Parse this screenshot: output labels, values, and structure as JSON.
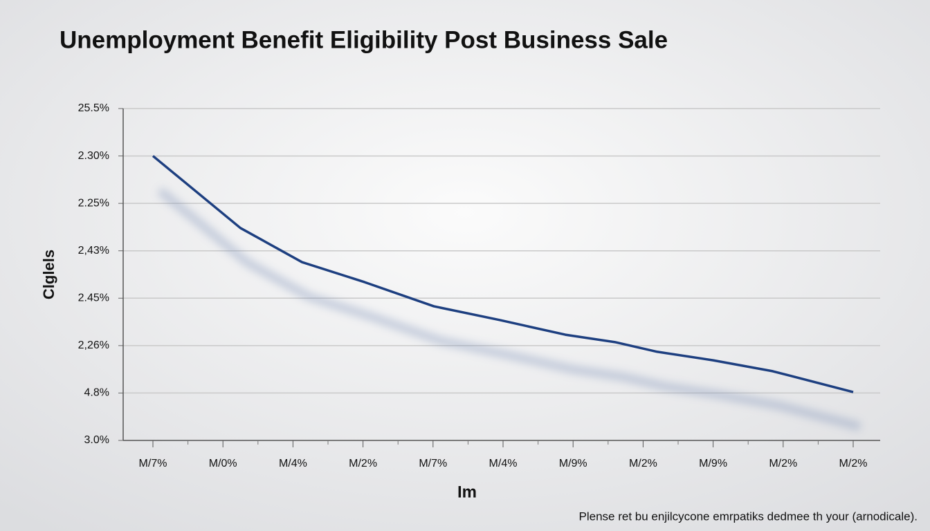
{
  "chart_data": {
    "type": "line",
    "title": "Unemployment Benefit Eligibility Post Business Sale",
    "x_label": "Im",
    "y_label": "Clglels",
    "footnote": "Plense ret bu enjilcycone emrpatiks dedmee th your (arnodicale).",
    "xlim": [
      0,
      10
    ],
    "xticks": [
      {
        "value": 0,
        "label": "M/7%"
      },
      {
        "value": 1,
        "label": "M/0%"
      },
      {
        "value": 2,
        "label": "M/4%"
      },
      {
        "value": 3,
        "label": "M/2%"
      },
      {
        "value": 4,
        "label": "M/7%"
      },
      {
        "value": 5,
        "label": "M/4%"
      },
      {
        "value": 6,
        "label": "M/9%"
      },
      {
        "value": 7,
        "label": "M/2%"
      },
      {
        "value": 8,
        "label": "M/9%"
      },
      {
        "value": 9,
        "label": "M/2%"
      },
      {
        "value": 10,
        "label": "M/2%"
      }
    ],
    "ylim": [
      0,
      7
    ],
    "yticks": [
      {
        "value": 0,
        "label": "3.0%"
      },
      {
        "value": 1,
        "label": "4.8%"
      },
      {
        "value": 2,
        "label": "2,26%"
      },
      {
        "value": 3,
        "label": "2.45%"
      },
      {
        "value": 4,
        "label": "2,43%"
      },
      {
        "value": 5,
        "label": "2.25%"
      },
      {
        "value": 6,
        "label": "2.30%"
      },
      {
        "value": 7,
        "label": "25.5%"
      }
    ],
    "grid": true,
    "x": [
      0,
      1.25,
      2.13,
      3.02,
      4.01,
      4.95,
      5.89,
      6.61,
      7.2,
      8.0,
      8.85,
      10
    ],
    "series": [
      {
        "color": "#1d3f80",
        "values": [
          6.0,
          4.48,
          3.76,
          3.34,
          2.83,
          2.54,
          2.23,
          2.07,
          1.87,
          1.69,
          1.46,
          1.02
        ]
      }
    ]
  }
}
